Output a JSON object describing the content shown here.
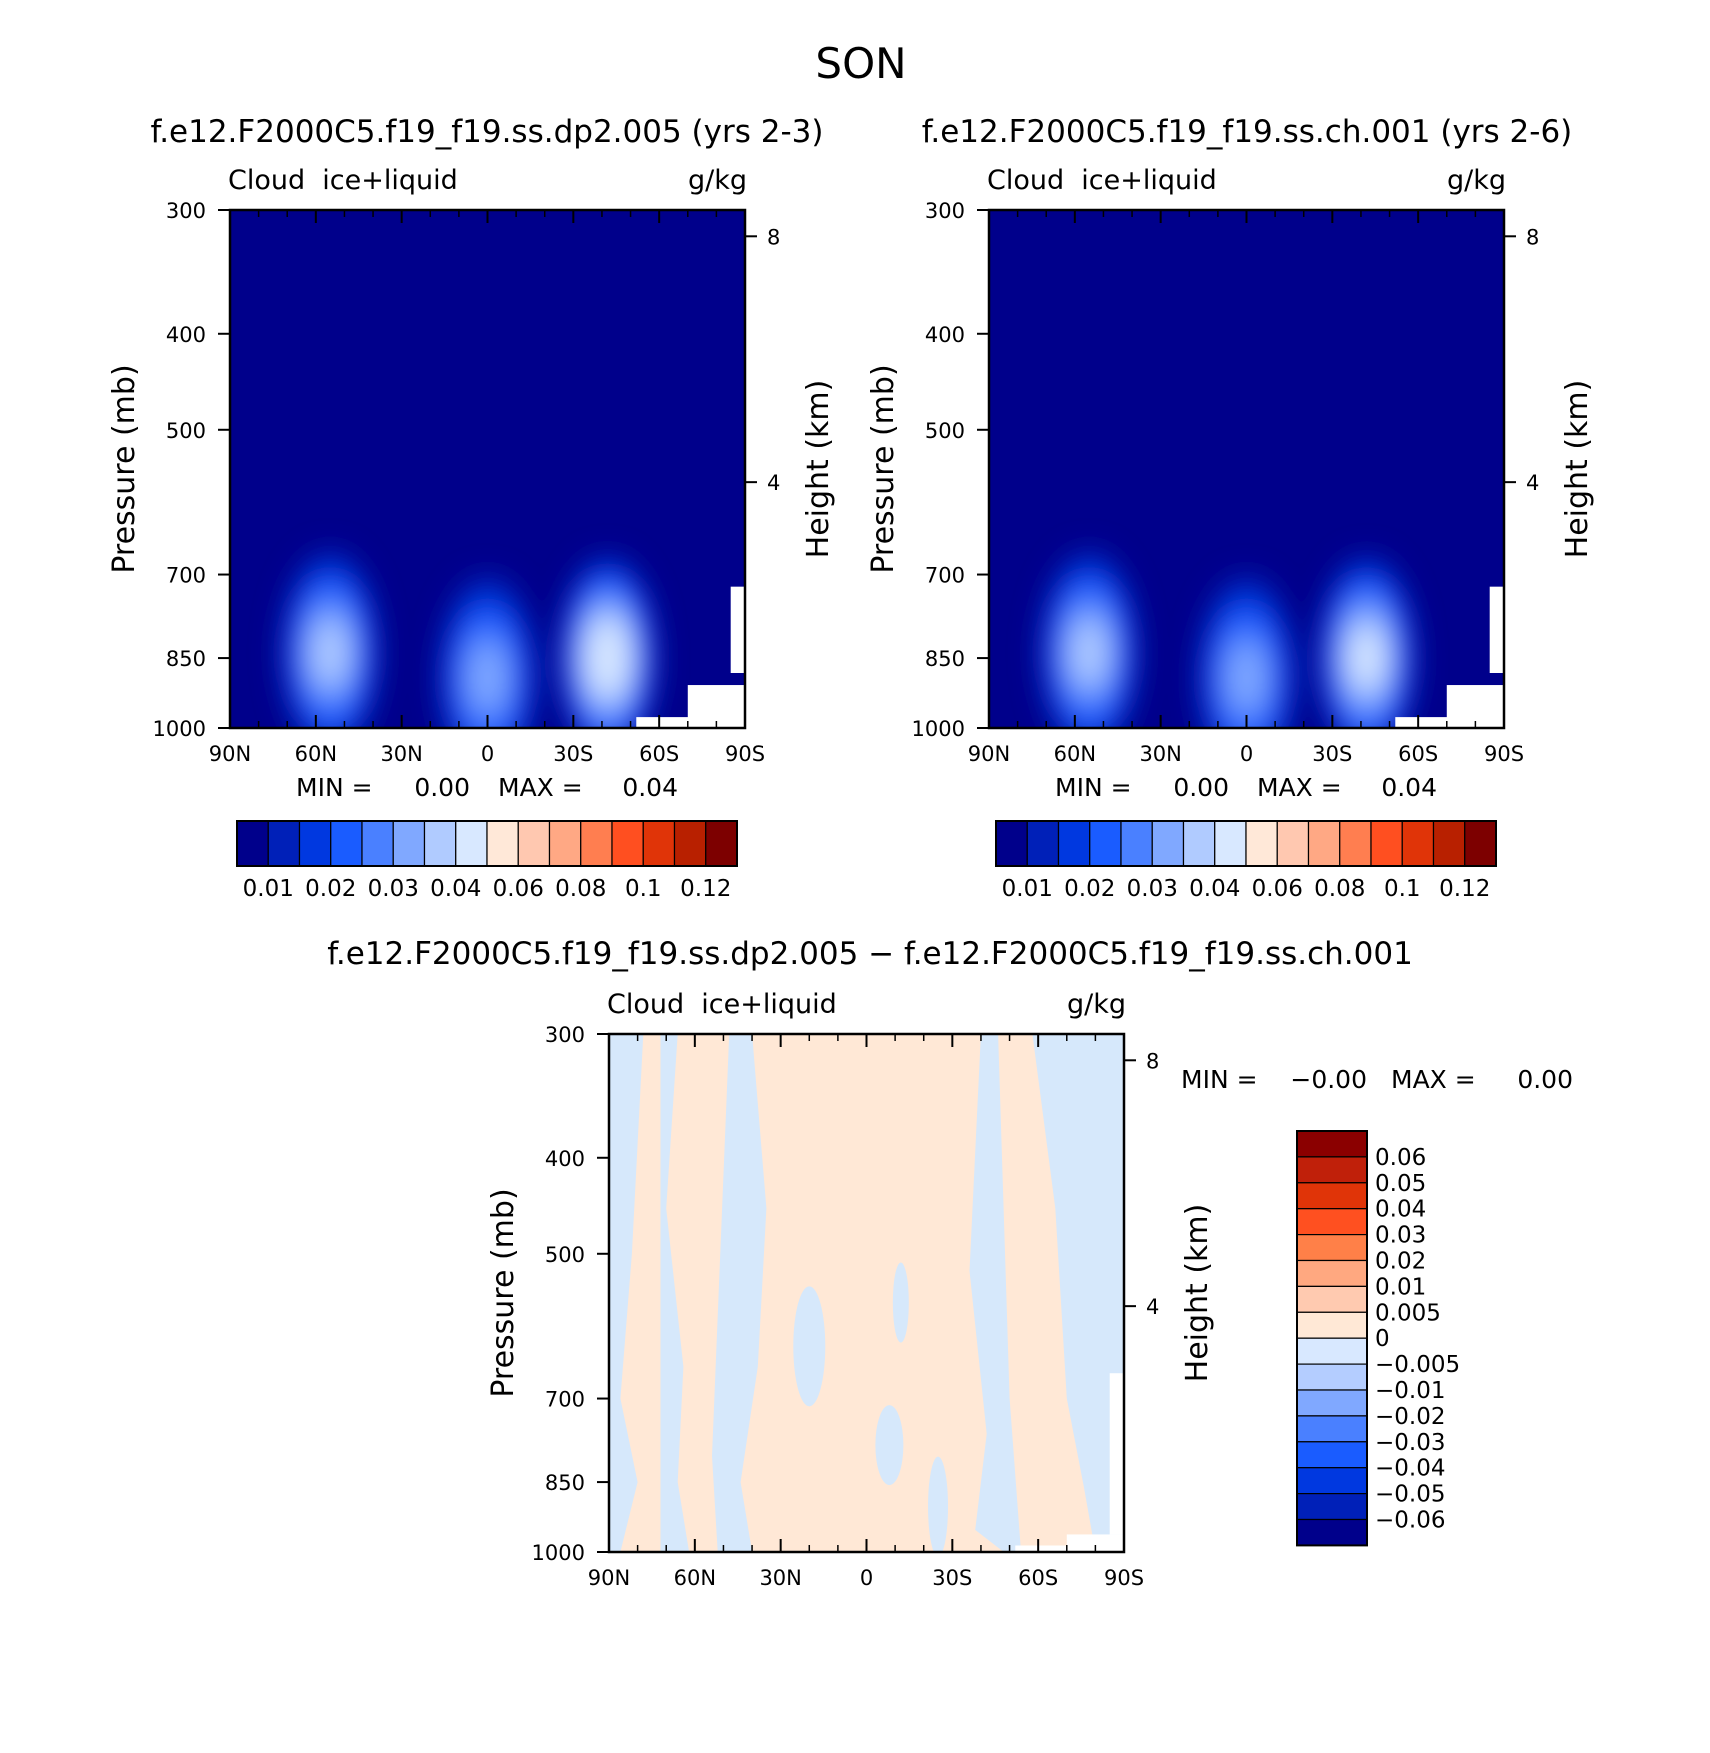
{
  "figure_title": "SON",
  "chart_data": [
    {
      "type": "heatmap",
      "title": "f.e12.F2000C5.f19_f19.ss.dp2.005 (yrs 2-3)",
      "subtitle_left": "Cloud  ice+liquid",
      "subtitle_right": "g/kg",
      "ylabel": "Pressure (mb)",
      "y2label": "Height (km)",
      "x_ticks": [
        "90N",
        "60N",
        "30N",
        "0",
        "30S",
        "60S",
        "90S"
      ],
      "y_ticks": [
        "300",
        "400",
        "500",
        "700",
        "850",
        "1000"
      ],
      "y2_ticks": [
        "8",
        "4"
      ],
      "xlim": [
        90,
        -90
      ],
      "ylim": [
        1000,
        300
      ],
      "min_label": "MIN =",
      "min_value": "0.00",
      "max_label": "MAX =",
      "max_value": "0.04",
      "colorbar_labels": [
        "0.01",
        "0.02",
        "0.03",
        "0.04",
        "0.06",
        "0.08",
        "0.1",
        "0.12"
      ],
      "features": [
        {
          "lat": 55,
          "p": 840,
          "peak": 0.028
        },
        {
          "lat": 0,
          "p": 890,
          "peak": 0.025
        },
        {
          "lat": -42,
          "p": 850,
          "peak": 0.04
        }
      ]
    },
    {
      "type": "heatmap",
      "title": "f.e12.F2000C5.f19_f19.ss.ch.001 (yrs 2-6)",
      "subtitle_left": "Cloud  ice+liquid",
      "subtitle_right": "g/kg",
      "ylabel": "Pressure (mb)",
      "y2label": "Height (km)",
      "x_ticks": [
        "90N",
        "60N",
        "30N",
        "0",
        "30S",
        "60S",
        "90S"
      ],
      "y_ticks": [
        "300",
        "400",
        "500",
        "700",
        "850",
        "1000"
      ],
      "y2_ticks": [
        "8",
        "4"
      ],
      "xlim": [
        90,
        -90
      ],
      "ylim": [
        1000,
        300
      ],
      "min_label": "MIN =",
      "min_value": "0.00",
      "max_label": "MAX =",
      "max_value": "0.04",
      "colorbar_labels": [
        "0.01",
        "0.02",
        "0.03",
        "0.04",
        "0.06",
        "0.08",
        "0.1",
        "0.12"
      ],
      "features": [
        {
          "lat": 55,
          "p": 840,
          "peak": 0.028
        },
        {
          "lat": 0,
          "p": 890,
          "peak": 0.025
        },
        {
          "lat": -42,
          "p": 850,
          "peak": 0.035
        }
      ]
    },
    {
      "type": "heatmap",
      "title": "f.e12.F2000C5.f19_f19.ss.dp2.005 − f.e12.F2000C5.f19_f19.ss.ch.001",
      "subtitle_left": "Cloud  ice+liquid",
      "subtitle_right": "g/kg",
      "ylabel": "Pressure (mb)",
      "y2label": "Height (km)",
      "x_ticks": [
        "90N",
        "60N",
        "30N",
        "0",
        "30S",
        "60S",
        "90S"
      ],
      "y_ticks": [
        "300",
        "400",
        "500",
        "700",
        "850",
        "1000"
      ],
      "y2_ticks": [
        "8",
        "4"
      ],
      "xlim": [
        90,
        -90
      ],
      "ylim": [
        1000,
        300
      ],
      "min_label": "MIN =",
      "min_value": "−0.00",
      "max_label": "MAX =",
      "max_value": "0.00",
      "colorbar_labels": [
        "0.06",
        "0.05",
        "0.04",
        "0.03",
        "0.02",
        "0.01",
        "0.005",
        "0",
        "−0.005",
        "−0.01",
        "−0.02",
        "−0.03",
        "−0.04",
        "−0.05",
        "−0.06"
      ]
    }
  ],
  "colors": {
    "abs_scale": [
      "#00008b",
      "#0020b8",
      "#0038e0",
      "#1a5cff",
      "#4a80ff",
      "#80a8ff",
      "#b0cbff",
      "#d8e8ff",
      "#ffe8d8",
      "#ffc8b0",
      "#ffa884",
      "#ff7e50",
      "#ff4f20",
      "#e03408",
      "#b82000",
      "#7d0000"
    ],
    "diff_scale_top_to_bottom": [
      "#8b0000",
      "#c0200a",
      "#e03408",
      "#ff5020",
      "#ff8048",
      "#ffa880",
      "#ffcab0",
      "#ffe8d6",
      "#d8e8ff",
      "#b4cdff",
      "#80a8ff",
      "#4a80ff",
      "#1a5cff",
      "#0038e0",
      "#0020b8",
      "#00008b"
    ],
    "diff_pos": "#ffe8d6",
    "diff_neg": "#d6e8fb"
  }
}
